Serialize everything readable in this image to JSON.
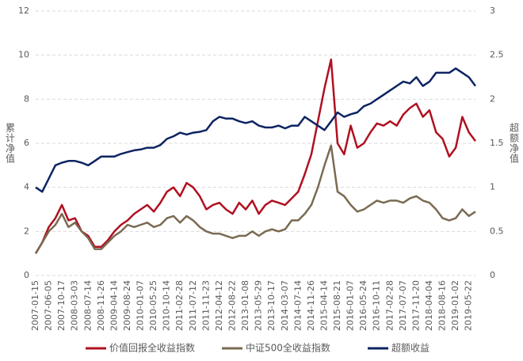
{
  "chart_data": {
    "type": "line",
    "ylabel": "累计净值",
    "y2label": "超额净值",
    "categories": [
      "2007-01-15",
      null,
      "2007-06-05",
      null,
      "2007-10-17",
      null,
      "2008-03-03",
      null,
      "2008-07-14",
      null,
      "2008-11-26",
      null,
      "2009-04-14",
      null,
      "2009-08-24",
      null,
      "2010-01-07",
      null,
      "2010-05-25",
      null,
      "2010-10-14",
      null,
      "2011-02-28",
      null,
      "2011-07-12",
      null,
      "2011-11-23",
      null,
      "2012-04-12",
      null,
      "2012-08-22",
      null,
      "2013-01-08",
      null,
      "2013-05-29",
      null,
      "2013-10-17",
      null,
      "2014-03-07",
      null,
      "2014-07-14",
      null,
      "2014-11-26",
      null,
      "2015-04-14",
      null,
      "2015-08-21",
      null,
      "2016-01-07",
      null,
      "2016-05-24",
      null,
      "2016-10-11",
      null,
      "2017-02-28",
      null,
      "2017-07-07",
      null,
      "2017-11-20",
      null,
      "2018-04-04",
      null,
      "2018-08-16",
      null,
      "2019-01-02",
      null,
      "2019-05-22",
      null
    ],
    "series": [
      {
        "name": "价值回报全收益指数",
        "color": "#b01020",
        "axis": "y",
        "values": [
          1.0,
          1.5,
          2.2,
          2.6,
          3.2,
          2.5,
          2.6,
          2.0,
          1.8,
          1.3,
          1.3,
          1.6,
          2.0,
          2.3,
          2.5,
          2.8,
          3.0,
          3.2,
          2.9,
          3.3,
          3.8,
          4.0,
          3.6,
          4.2,
          4.0,
          3.6,
          3.0,
          3.2,
          3.3,
          3.0,
          2.8,
          3.3,
          3.0,
          3.4,
          2.8,
          3.2,
          3.4,
          3.3,
          3.2,
          3.5,
          3.8,
          4.6,
          5.5,
          7.0,
          8.5,
          9.8,
          6.0,
          5.5,
          6.8,
          5.8,
          6.0,
          6.5,
          6.9,
          6.8,
          7.0,
          6.8,
          7.3,
          7.6,
          7.8,
          7.2,
          7.5,
          6.5,
          6.2,
          5.4,
          5.8,
          7.2,
          6.5,
          6.1
        ]
      },
      {
        "name": "中证500全收益指数",
        "color": "#7a6a52",
        "axis": "y",
        "values": [
          1.0,
          1.5,
          2.0,
          2.3,
          2.8,
          2.2,
          2.4,
          2.0,
          1.7,
          1.2,
          1.2,
          1.5,
          1.8,
          2.0,
          2.3,
          2.2,
          2.3,
          2.4,
          2.2,
          2.3,
          2.6,
          2.7,
          2.4,
          2.7,
          2.5,
          2.2,
          2.0,
          1.9,
          1.9,
          1.8,
          1.7,
          1.8,
          1.8,
          2.0,
          1.8,
          2.0,
          2.1,
          2.0,
          2.1,
          2.5,
          2.5,
          2.8,
          3.2,
          4.0,
          5.0,
          5.9,
          3.8,
          3.6,
          3.2,
          2.9,
          3.0,
          3.2,
          3.4,
          3.3,
          3.4,
          3.4,
          3.3,
          3.5,
          3.6,
          3.4,
          3.3,
          3.0,
          2.6,
          2.5,
          2.6,
          3.0,
          2.7,
          2.9
        ]
      },
      {
        "name": "超额收益",
        "color": "#0d2463",
        "axis": "y2",
        "values": [
          1.0,
          0.95,
          1.1,
          1.25,
          1.28,
          1.3,
          1.3,
          1.28,
          1.25,
          1.3,
          1.35,
          1.35,
          1.35,
          1.38,
          1.4,
          1.42,
          1.43,
          1.45,
          1.45,
          1.48,
          1.55,
          1.58,
          1.62,
          1.6,
          1.62,
          1.63,
          1.65,
          1.75,
          1.8,
          1.78,
          1.78,
          1.75,
          1.73,
          1.75,
          1.7,
          1.68,
          1.68,
          1.7,
          1.67,
          1.7,
          1.7,
          1.8,
          1.75,
          1.7,
          1.65,
          1.75,
          1.85,
          1.8,
          1.83,
          1.85,
          1.92,
          1.95,
          2.0,
          2.05,
          2.1,
          2.15,
          2.2,
          2.18,
          2.25,
          2.15,
          2.2,
          2.3,
          2.3,
          2.3,
          2.35,
          2.3,
          2.25,
          2.15
        ]
      }
    ],
    "ylim": [
      0,
      12
    ],
    "yticks": [
      0,
      2,
      4,
      6,
      8,
      10,
      12
    ],
    "y2lim": [
      0,
      3
    ],
    "y2ticks": [
      0,
      0.5,
      1,
      1.5,
      2,
      2.5,
      3
    ],
    "grid": true,
    "legend": "bottom"
  }
}
